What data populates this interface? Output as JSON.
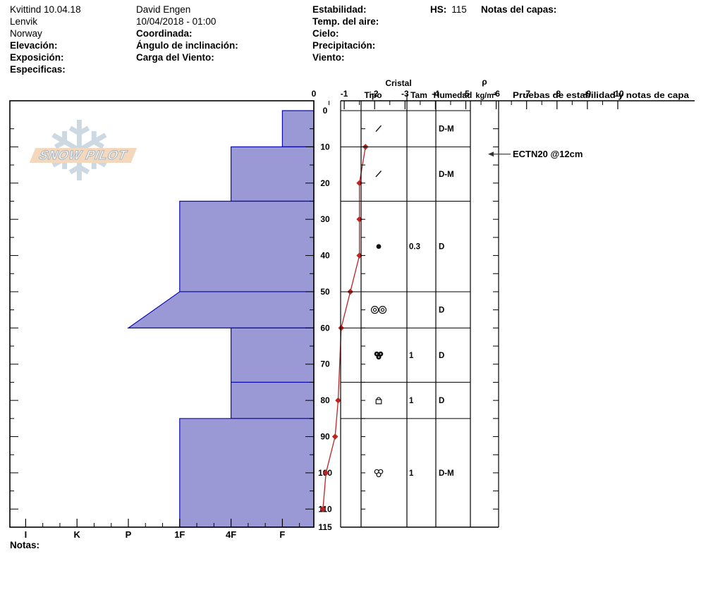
{
  "header": {
    "pit_name": "Kvittind 10.04.18",
    "location": "Lenvik",
    "country": "Norway",
    "elevation_label": "Elevación:",
    "aspect_label": "Exposición:",
    "specifics_label": "Especificas:",
    "observer": "David Engen",
    "datetime": "10/04/2018 - 01:00",
    "coordinates_label": "Coordinada:",
    "slope_angle_label": "Ángulo de inclinación:",
    "wind_loading_label": "Carga del Viento:",
    "stability_label": "Estabilidad:",
    "air_temp_label": "Temp. del aire:",
    "sky_label": "Cielo:",
    "precipitation_label": "Precipitación:",
    "wind_label": "Viento:",
    "hs_label": "HS:",
    "hs_value": "115",
    "layer_notes_label": "Notas del capas:"
  },
  "watermark": {
    "text": "SNOW PILOT"
  },
  "table": {
    "headers": {
      "cristal": "Cristal",
      "tipo": "Tipo",
      "tam": "Tam",
      "humedad": "Humedad",
      "rho": "ρ",
      "rho_units": "kg/m³",
      "tests": "Pruebas de estabilidad y notas de capa"
    }
  },
  "footer": {
    "notes_label": "Notas:"
  },
  "colors": {
    "bar_fill": "#9a99d6",
    "bar_stroke": "#0b0bb0",
    "temp_line": "#bb2423",
    "frame": "#000000",
    "logo_band": "#f3d8bd",
    "logo_flake": "#ccd9e3"
  },
  "chart_data": {
    "type": "snow-profile",
    "hs_cm": 115,
    "depth_axis": {
      "max": 115,
      "labeled_ticks": [
        0,
        10,
        20,
        30,
        40,
        50,
        60,
        70,
        80,
        90,
        100,
        110,
        115
      ],
      "minor_step_cm": 5
    },
    "temperature_axis": {
      "min": -10,
      "max": 0,
      "ticks": [
        -10,
        -9,
        -8,
        -7,
        -6,
        -5,
        -4,
        -3,
        -2,
        -1,
        0
      ]
    },
    "hardness_axis": {
      "categories": [
        "I",
        "K",
        "P",
        "1F",
        "4F",
        "F"
      ]
    },
    "layers": [
      {
        "top_cm": 0,
        "bottom_cm": 10,
        "hardness": "F",
        "grain_symbol": "slash",
        "grain_size_mm": "",
        "moisture": "D-M",
        "density": ""
      },
      {
        "top_cm": 10,
        "bottom_cm": 25,
        "hardness": "4F",
        "grain_symbol": "slash",
        "grain_size_mm": "",
        "moisture": "D-M",
        "density": ""
      },
      {
        "top_cm": 25,
        "bottom_cm": 50,
        "hardness": "1F",
        "grain_symbol": "filled-dot",
        "grain_size_mm": "0.3",
        "moisture": "D",
        "density": ""
      },
      {
        "top_cm": 50,
        "bottom_cm": 60,
        "hardness": "1F",
        "hardness_bottom": "P",
        "grain_symbol": "double-ring",
        "grain_size_mm": "",
        "moisture": "D",
        "density": ""
      },
      {
        "top_cm": 60,
        "bottom_cm": 75,
        "hardness": "4F",
        "grain_symbol": "cluster-filled",
        "grain_size_mm": "1",
        "moisture": "D",
        "density": ""
      },
      {
        "top_cm": 75,
        "bottom_cm": 85,
        "hardness": "4F",
        "grain_symbol": "dome-square",
        "grain_size_mm": "1",
        "moisture": "D",
        "density": ""
      },
      {
        "top_cm": 85,
        "bottom_cm": 115,
        "hardness": "1F",
        "grain_symbol": "cluster-open",
        "grain_size_mm": "1",
        "moisture": "D-M",
        "density": ""
      }
    ],
    "temperature_profile_c": [
      {
        "depth_cm": 10,
        "temp_c": -1.7
      },
      {
        "depth_cm": 20,
        "temp_c": -1.5
      },
      {
        "depth_cm": 30,
        "temp_c": -1.5
      },
      {
        "depth_cm": 40,
        "temp_c": -1.5
      },
      {
        "depth_cm": 50,
        "temp_c": -1.2
      },
      {
        "depth_cm": 60,
        "temp_c": -0.9
      },
      {
        "depth_cm": 80,
        "temp_c": -0.8
      },
      {
        "depth_cm": 90,
        "temp_c": -0.7
      },
      {
        "depth_cm": 100,
        "temp_c": -0.4
      },
      {
        "depth_cm": 110,
        "temp_c": -0.3
      }
    ],
    "stability_tests": [
      {
        "label": "ECTN20 @12cm",
        "depth_cm": 12
      }
    ]
  }
}
